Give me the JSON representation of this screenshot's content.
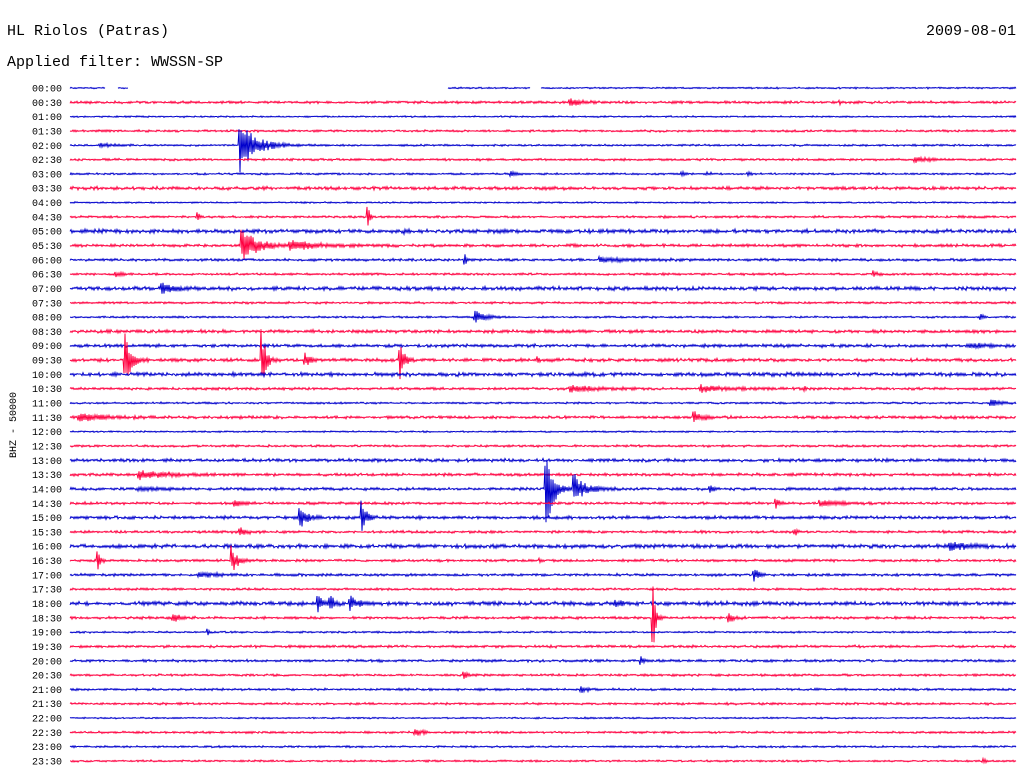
{
  "chart_data": {
    "type": "line",
    "title": "HL Riolos (Patras)",
    "date": "2009-08-01",
    "subtitle": "Applied filter: WWSSN-SP",
    "ylabel": "BHZ - 50000",
    "series_colors": [
      "#0000cc",
      "#ff0040"
    ],
    "rows": [
      {
        "label": "00:00",
        "noise": 0.05,
        "gaps": [
          [
            1.11,
            1.52
          ],
          [
            1.84,
            11.96
          ],
          [
            14.59,
            14.91
          ]
        ],
        "events": []
      },
      {
        "label": "00:30",
        "noise": 0.08,
        "events": [
          {
            "t": 15.87,
            "amp": 0.35,
            "dur": 0.7
          },
          {
            "t": 24.42,
            "amp": 0.12,
            "dur": 0.1
          }
        ]
      },
      {
        "label": "01:00",
        "noise": 0.05,
        "events": []
      },
      {
        "label": "01:30",
        "noise": 0.07,
        "events": []
      },
      {
        "label": "02:00",
        "noise": 0.06,
        "events": [
          {
            "t": 0.95,
            "amp": 0.12,
            "dur": 1.1
          },
          {
            "t": 5.39,
            "amp": 2.0,
            "dur": 1.2
          }
        ]
      },
      {
        "label": "02:30",
        "noise": 0.07,
        "events": [
          {
            "t": 26.8,
            "amp": 0.2,
            "dur": 1.0
          }
        ]
      },
      {
        "label": "03:00",
        "noise": 0.06,
        "events": [
          {
            "t": 14.0,
            "amp": 0.15,
            "dur": 0.5
          },
          {
            "t": 19.4,
            "amp": 0.15,
            "dur": 0.3
          },
          {
            "t": 20.2,
            "amp": 0.12,
            "dur": 0.5
          },
          {
            "t": 21.5,
            "amp": 0.2,
            "dur": 0.2
          }
        ]
      },
      {
        "label": "03:30",
        "noise": 0.1,
        "events": []
      },
      {
        "label": "04:00",
        "noise": 0.05,
        "events": []
      },
      {
        "label": "04:30",
        "noise": 0.07,
        "events": [
          {
            "t": 4.06,
            "amp": 0.3,
            "dur": 0.15
          },
          {
            "t": 9.45,
            "amp": 0.7,
            "dur": 0.15
          }
        ]
      },
      {
        "label": "05:00",
        "noise": 0.12,
        "events": [
          {
            "t": 10.62,
            "amp": 0.3,
            "dur": 0.2
          }
        ]
      },
      {
        "label": "05:30",
        "noise": 0.09,
        "events": [
          {
            "t": 5.45,
            "amp": 1.2,
            "dur": 1.2
          },
          {
            "t": 6.98,
            "amp": 0.35,
            "dur": 2.2
          }
        ]
      },
      {
        "label": "06:00",
        "noise": 0.08,
        "events": [
          {
            "t": 12.53,
            "amp": 0.4,
            "dur": 0.1
          },
          {
            "t": 16.8,
            "amp": 0.15,
            "dur": 2.8
          }
        ]
      },
      {
        "label": "06:30",
        "noise": 0.07,
        "events": [
          {
            "t": 1.46,
            "amp": 0.15,
            "dur": 0.6
          },
          {
            "t": 25.5,
            "amp": 0.2,
            "dur": 0.3
          }
        ]
      },
      {
        "label": "07:00",
        "noise": 0.12,
        "events": [
          {
            "t": 2.92,
            "amp": 0.4,
            "dur": 1.0
          }
        ]
      },
      {
        "label": "07:30",
        "noise": 0.07,
        "events": []
      },
      {
        "label": "08:00",
        "noise": 0.06,
        "events": [
          {
            "t": 12.84,
            "amp": 0.5,
            "dur": 0.8
          },
          {
            "t": 28.9,
            "amp": 0.2,
            "dur": 0.2
          }
        ]
      },
      {
        "label": "08:30",
        "noise": 0.1,
        "events": []
      },
      {
        "label": "09:00",
        "noise": 0.1,
        "events": [
          {
            "t": 28.5,
            "amp": 0.12,
            "dur": 1.5
          }
        ]
      },
      {
        "label": "09:30",
        "noise": 0.1,
        "events": [
          {
            "t": 1.74,
            "amp": 1.9,
            "dur": 0.5
          },
          {
            "t": 6.09,
            "amp": 2.3,
            "dur": 0.3
          },
          {
            "t": 7.45,
            "amp": 0.5,
            "dur": 0.4
          },
          {
            "t": 10.47,
            "amp": 1.8,
            "dur": 0.3
          },
          {
            "t": 14.85,
            "amp": 0.25,
            "dur": 0.1
          }
        ]
      },
      {
        "label": "10:00",
        "noise": 0.12,
        "events": []
      },
      {
        "label": "10:30",
        "noise": 0.08,
        "events": [
          {
            "t": 15.86,
            "amp": 0.25,
            "dur": 1.8
          },
          {
            "t": 20.0,
            "amp": 0.25,
            "dur": 2.0
          },
          {
            "t": 23.3,
            "amp": 0.15,
            "dur": 0.2
          }
        ]
      },
      {
        "label": "11:00",
        "noise": 0.06,
        "events": [
          {
            "t": 29.2,
            "amp": 0.3,
            "dur": 0.6
          }
        ]
      },
      {
        "label": "11:30",
        "noise": 0.09,
        "events": [
          {
            "t": 0.3,
            "amp": 0.3,
            "dur": 1.8
          },
          {
            "t": 19.8,
            "amp": 0.45,
            "dur": 0.6
          }
        ]
      },
      {
        "label": "12:00",
        "noise": 0.05,
        "events": []
      },
      {
        "label": "12:30",
        "noise": 0.07,
        "events": []
      },
      {
        "label": "13:00",
        "noise": 0.1,
        "events": []
      },
      {
        "label": "13:30",
        "noise": 0.09,
        "events": [
          {
            "t": 2.2,
            "amp": 0.3,
            "dur": 2.5
          }
        ]
      },
      {
        "label": "14:00",
        "noise": 0.09,
        "events": [
          {
            "t": 2.2,
            "amp": 0.12,
            "dur": 2.0
          },
          {
            "t": 15.1,
            "amp": 3.3,
            "dur": 0.5
          },
          {
            "t": 16.0,
            "amp": 1.0,
            "dur": 1.0
          },
          {
            "t": 20.3,
            "amp": 0.3,
            "dur": 0.2
          }
        ]
      },
      {
        "label": "14:30",
        "noise": 0.08,
        "events": [
          {
            "t": 5.24,
            "amp": 0.3,
            "dur": 0.5
          },
          {
            "t": 22.4,
            "amp": 0.3,
            "dur": 0.3
          },
          {
            "t": 23.8,
            "amp": 0.2,
            "dur": 1.5
          }
        ]
      },
      {
        "label": "15:00",
        "noise": 0.1,
        "events": [
          {
            "t": 7.3,
            "amp": 0.75,
            "dur": 0.6
          },
          {
            "t": 9.26,
            "amp": 1.3,
            "dur": 0.3
          }
        ]
      },
      {
        "label": "15:30",
        "noise": 0.08,
        "events": [
          {
            "t": 5.4,
            "amp": 0.3,
            "dur": 0.6
          },
          {
            "t": 23.0,
            "amp": 0.25,
            "dur": 0.2
          }
        ]
      },
      {
        "label": "16:00",
        "noise": 0.12,
        "events": [
          {
            "t": 27.9,
            "amp": 0.35,
            "dur": 1.5
          }
        ]
      },
      {
        "label": "16:30",
        "noise": 0.08,
        "events": [
          {
            "t": 0.89,
            "amp": 0.6,
            "dur": 0.2
          },
          {
            "t": 5.14,
            "amp": 1.0,
            "dur": 0.4
          },
          {
            "t": 14.9,
            "amp": 0.3,
            "dur": 0.1
          }
        ]
      },
      {
        "label": "17:00",
        "noise": 0.08,
        "events": [
          {
            "t": 4.1,
            "amp": 0.2,
            "dur": 1.5
          },
          {
            "t": 21.7,
            "amp": 0.5,
            "dur": 0.3
          }
        ]
      },
      {
        "label": "17:30",
        "noise": 0.07,
        "events": []
      },
      {
        "label": "18:00",
        "noise": 0.12,
        "events": [
          {
            "t": 7.86,
            "amp": 0.8,
            "dur": 0.3
          },
          {
            "t": 8.25,
            "amp": 0.8,
            "dur": 0.3
          },
          {
            "t": 8.88,
            "amp": 0.6,
            "dur": 0.5
          },
          {
            "t": 17.3,
            "amp": 0.2,
            "dur": 0.6
          }
        ]
      },
      {
        "label": "18:30",
        "noise": 0.08,
        "events": [
          {
            "t": 3.27,
            "amp": 0.35,
            "dur": 0.5
          },
          {
            "t": 18.49,
            "amp": 2.8,
            "dur": 0.2
          },
          {
            "t": 20.9,
            "amp": 0.3,
            "dur": 0.4
          }
        ]
      },
      {
        "label": "19:00",
        "noise": 0.06,
        "events": [
          {
            "t": 4.38,
            "amp": 0.25,
            "dur": 0.1
          }
        ]
      },
      {
        "label": "19:30",
        "noise": 0.08,
        "events": []
      },
      {
        "label": "20:00",
        "noise": 0.08,
        "events": [
          {
            "t": 18.1,
            "amp": 0.3,
            "dur": 0.3
          }
        ]
      },
      {
        "label": "20:30",
        "noise": 0.07,
        "events": [
          {
            "t": 12.5,
            "amp": 0.25,
            "dur": 0.3
          }
        ]
      },
      {
        "label": "21:00",
        "noise": 0.07,
        "events": [
          {
            "t": 16.2,
            "amp": 0.3,
            "dur": 0.5
          }
        ]
      },
      {
        "label": "21:30",
        "noise": 0.07,
        "events": []
      },
      {
        "label": "22:00",
        "noise": 0.05,
        "events": []
      },
      {
        "label": "22:30",
        "noise": 0.07,
        "events": [
          {
            "t": 10.94,
            "amp": 0.3,
            "dur": 0.6
          }
        ]
      },
      {
        "label": "23:00",
        "noise": 0.06,
        "events": []
      },
      {
        "label": "23:30",
        "noise": 0.06,
        "events": [
          {
            "t": 28.96,
            "amp": 0.2,
            "dur": 0.2
          }
        ]
      }
    ]
  }
}
